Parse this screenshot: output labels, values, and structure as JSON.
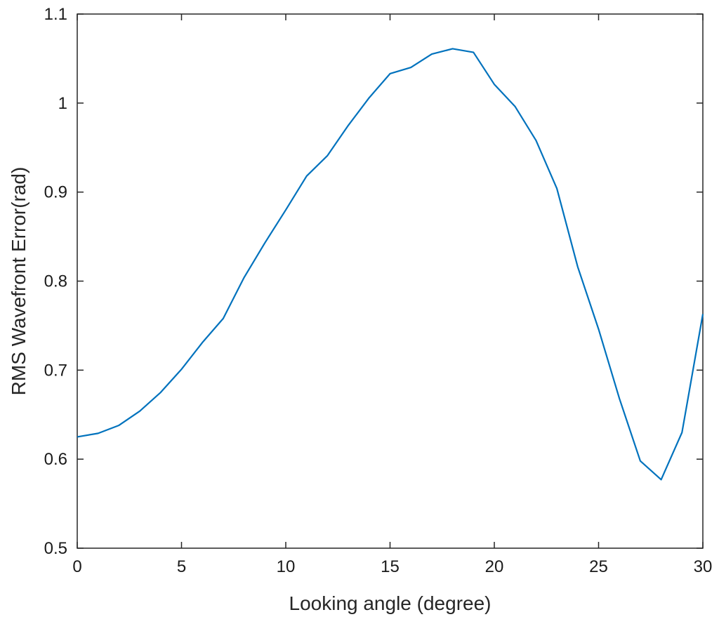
{
  "chart_data": {
    "type": "line",
    "title": "",
    "xlabel": "Looking angle (degree)",
    "ylabel": "RMS Wavefront Error(rad)",
    "xlim": [
      0,
      30
    ],
    "ylim": [
      0.5,
      1.1
    ],
    "xticks": [
      0,
      5,
      10,
      15,
      20,
      25,
      30
    ],
    "yticks": [
      0.5,
      0.6,
      0.7,
      0.8,
      0.9,
      1.0,
      1.1
    ],
    "xtick_labels": [
      "0",
      "5",
      "10",
      "15",
      "20",
      "25",
      "30"
    ],
    "ytick_labels": [
      "0.5",
      "0.6",
      "0.7",
      "0.8",
      "0.9",
      "1",
      "1.1"
    ],
    "grid": false,
    "box": true,
    "series": [
      {
        "color": "#0072bd",
        "x": [
          0,
          1,
          2,
          3,
          4,
          5,
          6,
          7,
          8,
          9,
          10,
          11,
          12,
          13,
          14,
          15,
          16,
          17,
          18,
          19,
          20,
          21,
          22,
          23,
          24,
          25,
          26,
          27,
          28,
          29,
          30
        ],
        "y": [
          0.625,
          0.629,
          0.638,
          0.654,
          0.675,
          0.701,
          0.731,
          0.758,
          0.804,
          0.843,
          0.88,
          0.918,
          0.941,
          0.975,
          1.006,
          1.033,
          1.04,
          1.055,
          1.061,
          1.057,
          1.021,
          0.996,
          0.958,
          0.904,
          0.816,
          0.746,
          0.668,
          0.598,
          0.577,
          0.63,
          0.763
        ]
      }
    ]
  }
}
